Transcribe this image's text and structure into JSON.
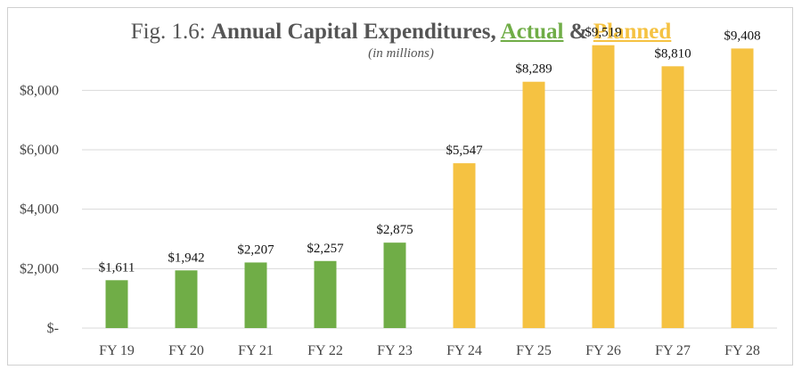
{
  "chart_data": {
    "type": "bar",
    "title": {
      "prefix": "Fig. 1.6: ",
      "main": "Annual Capital Expenditures, ",
      "actual_word": "Actual",
      "ampersand": " & ",
      "planned_word": "Planned"
    },
    "subtitle": "(in millions)",
    "categories": [
      "FY 19",
      "FY 20",
      "FY 21",
      "FY 22",
      "FY 23",
      "FY 24",
      "FY 25",
      "FY 26",
      "FY 27",
      "FY 28"
    ],
    "values": [
      1611,
      1942,
      2207,
      2257,
      2875,
      5547,
      8289,
      9519,
      8810,
      9408
    ],
    "value_labels": [
      "$1,611",
      "$1,942",
      "$2,207",
      "$2,257",
      "$2,875",
      "$5,547",
      "$8,289",
      "$9,519",
      "$8,810",
      "$9,408"
    ],
    "bar_status": [
      "actual",
      "actual",
      "actual",
      "actual",
      "actual",
      "planned",
      "planned",
      "planned",
      "planned",
      "planned"
    ],
    "colors": {
      "actual": "#70ad47",
      "planned": "#f5c242",
      "grid": "#d9d9d9"
    },
    "y_ticks": [
      0,
      2000,
      4000,
      6000,
      8000
    ],
    "y_tick_labels": [
      "$-",
      "$2,000",
      "$4,000",
      "$6,000",
      "$8,000"
    ],
    "ylim": [
      0,
      9000
    ],
    "grid": true,
    "legend": "none"
  }
}
